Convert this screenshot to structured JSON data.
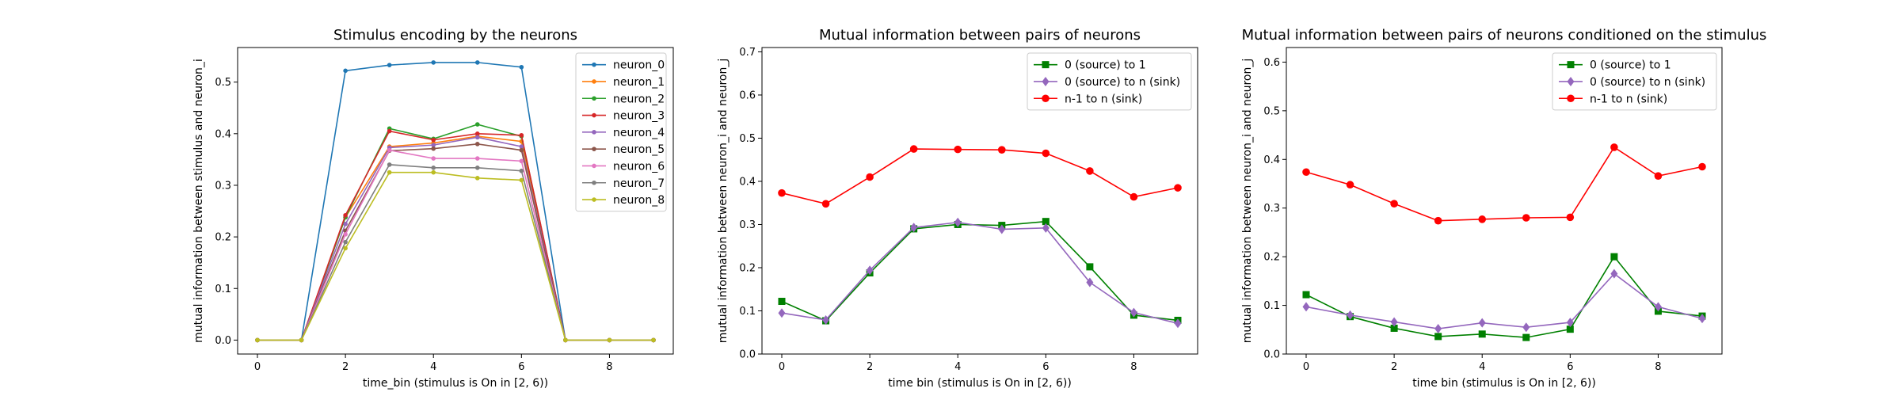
{
  "chart_data": [
    {
      "type": "line",
      "title": "Stimulus encoding by the neurons",
      "xlabel": "time_bin (stimulus is On in [2, 6))",
      "ylabel": "mutual information between stimulus and neuron_i",
      "xlim": [
        -0.45,
        9.45
      ],
      "ylim": [
        -0.027,
        0.567
      ],
      "xticks": [
        0,
        2,
        4,
        6,
        8
      ],
      "yticks": [
        0.0,
        0.1,
        0.2,
        0.3,
        0.4,
        0.5
      ],
      "x": [
        0,
        1,
        2,
        3,
        4,
        5,
        6,
        7,
        8,
        9
      ],
      "legend": "top-right",
      "series": [
        {
          "name": "neuron_0",
          "color": "#1f77b4",
          "marker": "point",
          "values": [
            0,
            0,
            0.522,
            0.533,
            0.538,
            0.538,
            0.529,
            0,
            0,
            0
          ]
        },
        {
          "name": "neuron_1",
          "color": "#ff7f0e",
          "marker": "point",
          "values": [
            0,
            0,
            0.238,
            0.375,
            0.382,
            0.395,
            0.385,
            0,
            0,
            0
          ]
        },
        {
          "name": "neuron_2",
          "color": "#2ca02c",
          "marker": "point",
          "values": [
            0,
            0,
            0.238,
            0.41,
            0.39,
            0.418,
            0.395,
            0,
            0,
            0
          ]
        },
        {
          "name": "neuron_3",
          "color": "#d62728",
          "marker": "point",
          "values": [
            0,
            0,
            0.242,
            0.405,
            0.388,
            0.4,
            0.397,
            0,
            0,
            0
          ]
        },
        {
          "name": "neuron_4",
          "color": "#9467bd",
          "marker": "point",
          "values": [
            0,
            0,
            0.225,
            0.373,
            0.378,
            0.393,
            0.375,
            0,
            0,
            0
          ]
        },
        {
          "name": "neuron_5",
          "color": "#8c564b",
          "marker": "point",
          "values": [
            0,
            0,
            0.212,
            0.367,
            0.371,
            0.38,
            0.368,
            0,
            0,
            0
          ]
        },
        {
          "name": "neuron_6",
          "color": "#e377c2",
          "marker": "point",
          "values": [
            0,
            0,
            0.205,
            0.368,
            0.352,
            0.352,
            0.347,
            0,
            0,
            0
          ]
        },
        {
          "name": "neuron_7",
          "color": "#7f7f7f",
          "marker": "point",
          "values": [
            0,
            0,
            0.19,
            0.34,
            0.334,
            0.334,
            0.328,
            0,
            0,
            0
          ]
        },
        {
          "name": "neuron_8",
          "color": "#bcbd22",
          "marker": "point",
          "values": [
            0,
            0,
            0.178,
            0.325,
            0.325,
            0.314,
            0.31,
            0,
            0,
            0
          ]
        }
      ]
    },
    {
      "type": "line",
      "title": "Mutual information between pairs of neurons",
      "xlabel": "time bin (stimulus is On in [2, 6))",
      "ylabel": "mutual information between neuron_i and neuron_j",
      "xlim": [
        -0.45,
        9.45
      ],
      "ylim": [
        0,
        0.71
      ],
      "xticks": [
        0,
        2,
        4,
        6,
        8
      ],
      "yticks": [
        0.0,
        0.1,
        0.2,
        0.3,
        0.4,
        0.5,
        0.6,
        0.7
      ],
      "x": [
        0,
        1,
        2,
        3,
        4,
        5,
        6,
        7,
        8,
        9
      ],
      "legend": "top-right",
      "series": [
        {
          "name": "0 (source) to 1",
          "color": "#008000",
          "marker": "square",
          "values": [
            0.122,
            0.077,
            0.188,
            0.29,
            0.3,
            0.298,
            0.307,
            0.202,
            0.09,
            0.078
          ]
        },
        {
          "name": "0 (source) to n (sink)",
          "color": "#9467bd",
          "marker": "diamond",
          "values": [
            0.095,
            0.079,
            0.194,
            0.293,
            0.305,
            0.289,
            0.292,
            0.166,
            0.096,
            0.071
          ]
        },
        {
          "name": "n-1 to n (sink)",
          "color": "#ff0000",
          "marker": "circle",
          "values": [
            0.373,
            0.348,
            0.41,
            0.475,
            0.474,
            0.473,
            0.465,
            0.424,
            0.364,
            0.385
          ]
        }
      ]
    },
    {
      "type": "line",
      "title": "Mutual information between pairs of neurons conditioned on the stimulus",
      "xlabel": "time bin (stimulus is On in [2, 6))",
      "ylabel": "mutual information between neuron_i and neuron_j",
      "xlim": [
        -0.45,
        9.45
      ],
      "ylim": [
        0,
        0.63
      ],
      "xticks": [
        0,
        2,
        4,
        6,
        8
      ],
      "yticks": [
        0.0,
        0.1,
        0.2,
        0.3,
        0.4,
        0.5,
        0.6
      ],
      "x": [
        0,
        1,
        2,
        3,
        4,
        5,
        6,
        7,
        8,
        9
      ],
      "legend": "top-right",
      "series": [
        {
          "name": "0 (source) to 1",
          "color": "#008000",
          "marker": "square",
          "values": [
            0.122,
            0.077,
            0.053,
            0.036,
            0.041,
            0.034,
            0.051,
            0.2,
            0.088,
            0.078
          ]
        },
        {
          "name": "0 (source) to n (sink)",
          "color": "#9467bd",
          "marker": "diamond",
          "values": [
            0.097,
            0.08,
            0.066,
            0.052,
            0.064,
            0.055,
            0.065,
            0.165,
            0.097,
            0.073
          ]
        },
        {
          "name": "n-1 to n (sink)",
          "color": "#ff0000",
          "marker": "circle",
          "values": [
            0.374,
            0.348,
            0.309,
            0.274,
            0.277,
            0.28,
            0.281,
            0.425,
            0.366,
            0.385
          ]
        }
      ]
    }
  ]
}
